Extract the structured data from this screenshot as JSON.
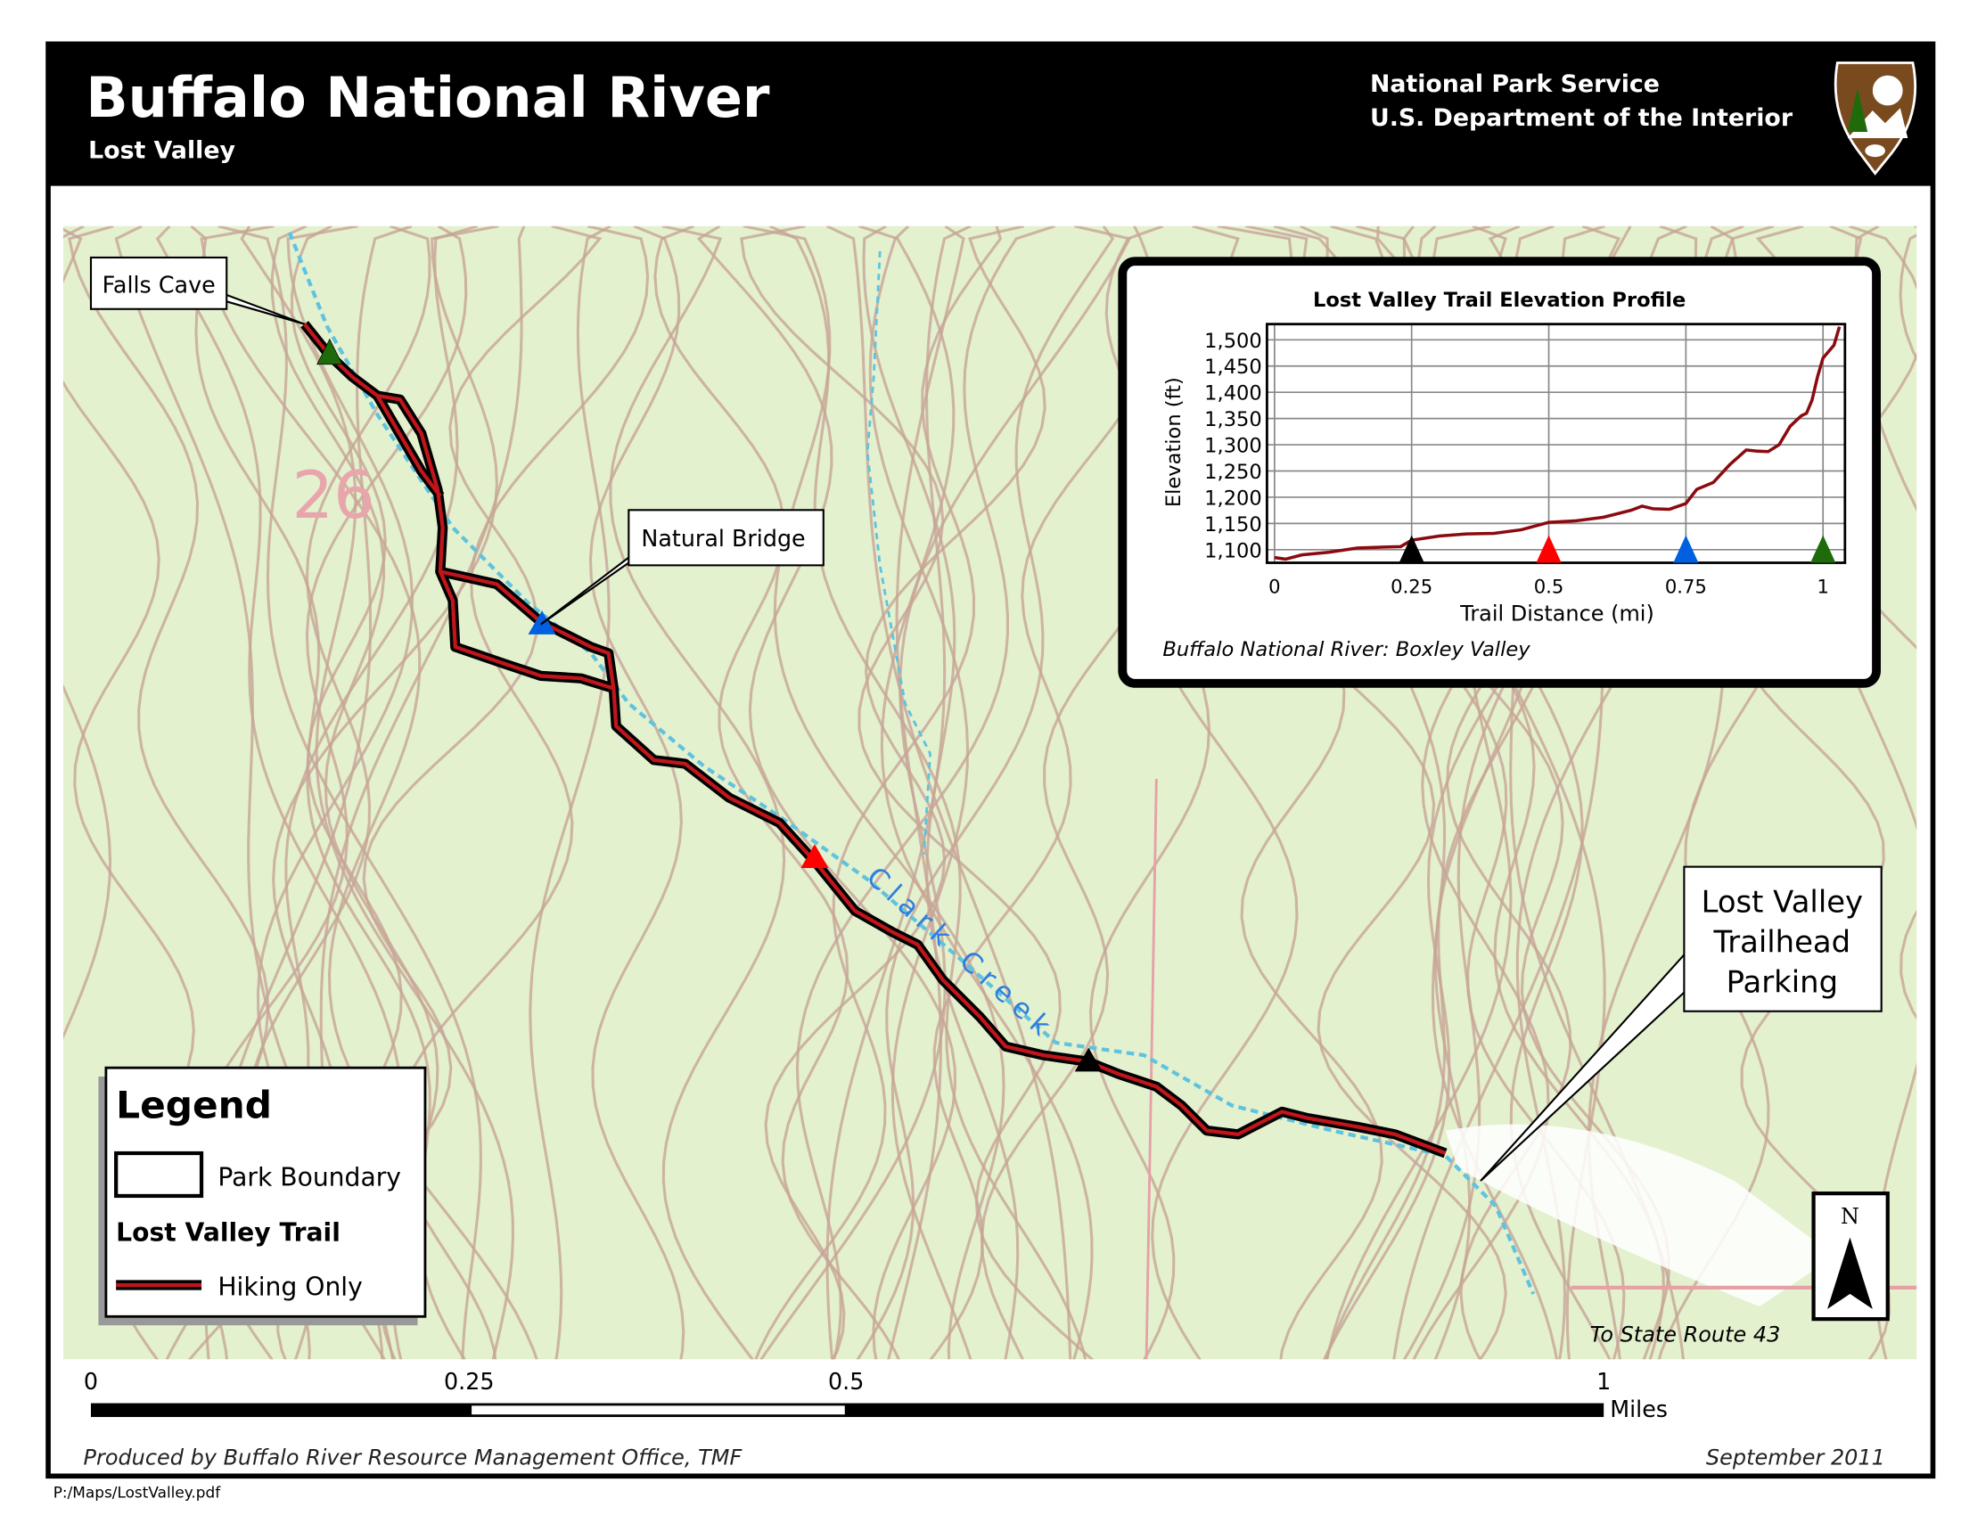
{
  "header": {
    "title": "Buffalo National River",
    "subtitle": "Lost Valley",
    "agency_line1": "National Park Service",
    "agency_line2": "U.S. Department of the Interior",
    "logo_text": "NATIONAL PARK SERVICE"
  },
  "map": {
    "labels": {
      "falls_cave": "Falls Cave",
      "natural_bridge": "Natural Bridge",
      "trailhead_line1": "Lost Valley",
      "trailhead_line2": "Trailhead",
      "trailhead_line3": "Parking",
      "creek": "Clark Creek",
      "route": "To State Route 43",
      "section": "26"
    },
    "colors": {
      "land": "#e3f1cf",
      "contour": "#c7a596",
      "trail": "#c0161b",
      "creek": "#5fc3de"
    },
    "north_label": "N"
  },
  "legend": {
    "title": "Legend",
    "park_boundary": "Park Boundary",
    "trail_heading": "Lost Valley Trail",
    "hiking_only": "Hiking Only"
  },
  "scale_bar": {
    "ticks": [
      "0",
      "0.25",
      "0.5",
      "1"
    ],
    "unit": "Miles"
  },
  "footer": {
    "credit": "Produced by Buffalo River Resource Management Office, TMF",
    "date": "September 2011",
    "file_path": "P:/Maps/LostValley.pdf"
  },
  "chart_data": {
    "type": "line",
    "title": "Lost Valley Trail Elevation Profile",
    "xlabel": "Trail Distance (mi)",
    "ylabel": "Elevation (ft)",
    "caption": "Buffalo National River: Boxley Valley",
    "xlim": [
      0,
      1.04
    ],
    "ylim": [
      1075,
      1530
    ],
    "xticks": [
      0,
      0.25,
      0.5,
      0.75,
      1
    ],
    "xtick_labels": [
      "0",
      "0.25",
      "0.5",
      "0.75",
      "1"
    ],
    "yticks": [
      1100,
      1150,
      1200,
      1250,
      1300,
      1350,
      1400,
      1450,
      1500
    ],
    "ytick_labels": [
      "1,100",
      "1,150",
      "1,200",
      "1,250",
      "1,300",
      "1,350",
      "1,400",
      "1,450",
      "1,500"
    ],
    "grid": true,
    "line_color": "#8b0a0f",
    "x": [
      0,
      0.02,
      0.05,
      0.1,
      0.15,
      0.2,
      0.23,
      0.25,
      0.3,
      0.35,
      0.4,
      0.45,
      0.5,
      0.55,
      0.6,
      0.65,
      0.67,
      0.69,
      0.72,
      0.75,
      0.77,
      0.8,
      0.83,
      0.86,
      0.88,
      0.9,
      0.92,
      0.94,
      0.96,
      0.97,
      0.98,
      0.99,
      1.0,
      1.02,
      1.03
    ],
    "y": [
      1085,
      1082,
      1090,
      1095,
      1103,
      1105,
      1106,
      1118,
      1126,
      1130,
      1131,
      1138,
      1152,
      1155,
      1162,
      1175,
      1183,
      1178,
      1177,
      1188,
      1215,
      1228,
      1262,
      1290,
      1288,
      1287,
      1300,
      1335,
      1355,
      1360,
      1385,
      1430,
      1465,
      1490,
      1525
    ],
    "markers": [
      {
        "x": 0.25,
        "color": "#000000"
      },
      {
        "x": 0.5,
        "color": "#ff0000"
      },
      {
        "x": 0.75,
        "color": "#0060e0"
      },
      {
        "x": 1.0,
        "color": "#1f6b0c"
      }
    ]
  }
}
